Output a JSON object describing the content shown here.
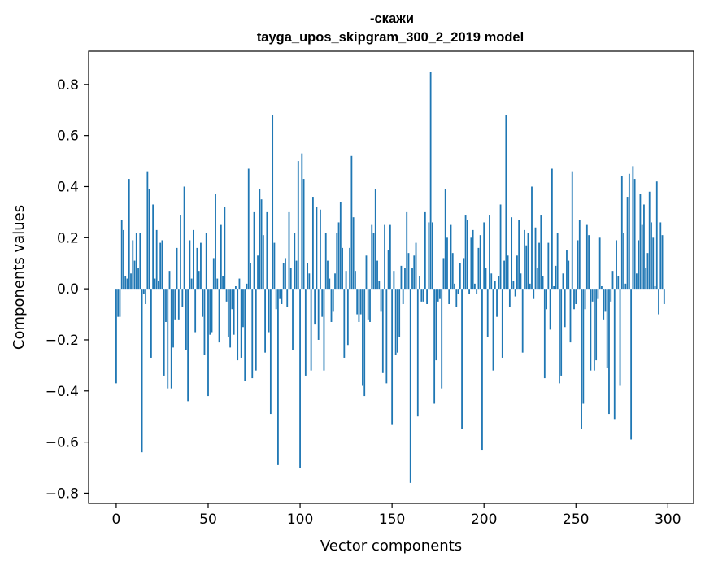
{
  "chart_data": {
    "type": "bar",
    "title_line1": "-скажи",
    "title_line2": "tayga_upos_skipgram_300_2_2019 model",
    "xlabel": "Vector components",
    "ylabel": "Components values",
    "xlim": [
      -15,
      314
    ],
    "ylim": [
      -0.84,
      0.93
    ],
    "xticks": [
      0,
      50,
      100,
      150,
      200,
      250,
      300
    ],
    "xtick_labels": [
      "0",
      "50",
      "100",
      "150",
      "200",
      "250",
      "300"
    ],
    "yticks": [
      -0.8,
      -0.6,
      -0.4,
      -0.2,
      0.0,
      0.2,
      0.4,
      0.6,
      0.8
    ],
    "ytick_labels": [
      "−0.8",
      "−0.6",
      "−0.4",
      "−0.2",
      "0.0",
      "0.2",
      "0.4",
      "0.6",
      "0.8"
    ],
    "bar_color": "#1f77b4",
    "values": [
      -0.37,
      -0.11,
      -0.11,
      0.27,
      0.23,
      0.05,
      0.04,
      0.43,
      0.06,
      0.19,
      0.11,
      0.22,
      0.08,
      0.22,
      -0.64,
      -0.02,
      -0.06,
      0.46,
      0.39,
      -0.27,
      0.33,
      0.04,
      0.23,
      0.03,
      0.18,
      0.19,
      -0.34,
      -0.13,
      -0.39,
      0.07,
      -0.39,
      -0.23,
      -0.12,
      0.16,
      -0.12,
      0.29,
      -0.07,
      0.4,
      -0.24,
      -0.44,
      0.19,
      0.04,
      0.23,
      -0.17,
      0.16,
      0.07,
      0.18,
      -0.11,
      -0.26,
      0.22,
      -0.42,
      -0.18,
      -0.17,
      0.12,
      0.37,
      0.04,
      -0.21,
      0.25,
      0.05,
      0.32,
      -0.05,
      -0.19,
      -0.23,
      -0.08,
      -0.18,
      0.01,
      -0.28,
      0.04,
      -0.27,
      -0.15,
      -0.36,
      0.02,
      0.47,
      0.1,
      -0.35,
      0.3,
      -0.32,
      0.13,
      0.39,
      0.35,
      0.21,
      -0.25,
      0.3,
      -0.17,
      -0.49,
      0.68,
      0.18,
      -0.08,
      -0.69,
      -0.04,
      -0.06,
      0.1,
      0.12,
      -0.07,
      0.3,
      0.08,
      -0.24,
      0.22,
      0.11,
      0.5,
      -0.7,
      0.53,
      0.43,
      -0.34,
      0.1,
      0.06,
      -0.32,
      0.36,
      -0.14,
      0.32,
      -0.2,
      0.31,
      -0.11,
      -0.32,
      0.22,
      0.11,
      0.04,
      -0.13,
      -0.09,
      0.06,
      0.22,
      0.26,
      0.34,
      0.16,
      -0.27,
      0.07,
      -0.22,
      0.16,
      0.52,
      0.28,
      0.07,
      -0.1,
      -0.13,
      -0.1,
      -0.38,
      -0.42,
      0.13,
      -0.12,
      -0.13,
      0.25,
      0.22,
      0.39,
      0.11,
      0.03,
      -0.09,
      -0.33,
      0.25,
      -0.37,
      0.15,
      0.25,
      -0.53,
      0.07,
      -0.26,
      -0.25,
      -0.19,
      0.09,
      -0.06,
      0.08,
      0.3,
      0.14,
      -0.76,
      0.08,
      0.13,
      0.18,
      -0.5,
      0.05,
      -0.05,
      -0.05,
      0.3,
      -0.06,
      0.26,
      0.85,
      0.26,
      -0.45,
      -0.28,
      -0.05,
      -0.04,
      -0.39,
      0.12,
      0.39,
      0.2,
      -0.06,
      0.25,
      0.14,
      0.02,
      -0.07,
      -0.02,
      0.1,
      -0.55,
      0.12,
      0.29,
      0.27,
      -0.02,
      0.2,
      0.23,
      0.02,
      -0.02,
      0.16,
      0.21,
      -0.63,
      0.26,
      0.08,
      -0.19,
      0.29,
      0.06,
      -0.32,
      0.03,
      -0.11,
      0.05,
      0.33,
      -0.27,
      0.11,
      0.68,
      0.13,
      -0.07,
      0.28,
      0.03,
      -0.03,
      0.13,
      0.27,
      0.06,
      -0.25,
      0.23,
      0.17,
      0.22,
      0.02,
      0.4,
      -0.04,
      0.24,
      0.08,
      0.18,
      0.29,
      0.05,
      -0.35,
      -0.08,
      0.18,
      -0.16,
      0.47,
      0.01,
      0.09,
      0.22,
      -0.37,
      -0.34,
      0.06,
      -0.15,
      0.15,
      0.11,
      -0.21,
      0.46,
      -0.08,
      -0.06,
      0.19,
      0.27,
      -0.55,
      -0.45,
      -0.08,
      0.25,
      0.21,
      -0.32,
      -0.05,
      -0.32,
      -0.28,
      -0.04,
      0.2,
      0.01,
      -0.12,
      -0.09,
      -0.31,
      -0.49,
      -0.05,
      0.07,
      -0.51,
      0.19,
      0.05,
      -0.38,
      0.44,
      0.22,
      0.02,
      0.36,
      0.45,
      -0.59,
      0.48,
      0.43,
      0.06,
      0.19,
      0.37,
      0.25,
      0.33,
      0.08,
      0.14,
      0.38,
      0.26,
      0.2,
      0.01,
      0.42,
      -0.1,
      0.26,
      0.21,
      -0.06
    ]
  }
}
